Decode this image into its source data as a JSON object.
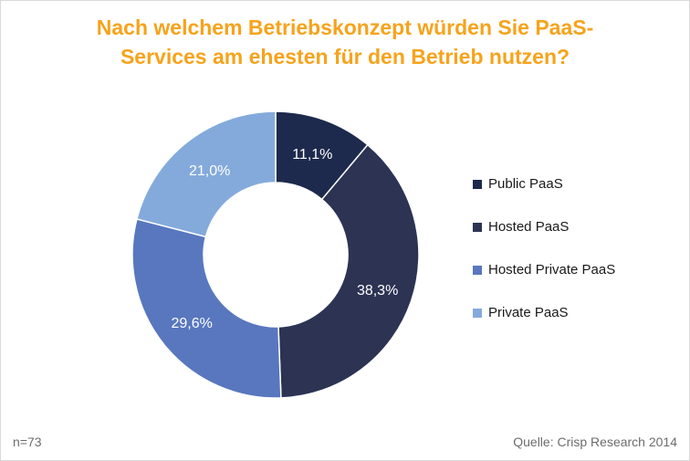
{
  "title_lines": [
    "Nach welchem Betriebskonzept würden Sie PaaS-",
    "Services am ehesten für den Betrieb nutzen?"
  ],
  "footer": {
    "sample": "n=73",
    "source": "Quelle: Crisp Research 2014"
  },
  "chart_data": {
    "type": "pie",
    "variant": "donut",
    "title": "Nach welchem Betriebskonzept würden Sie PaaS-Services am ehesten für den Betrieb nutzen?",
    "categories": [
      "Public PaaS",
      "Hosted PaaS",
      "Hosted Private PaaS",
      "Private PaaS"
    ],
    "values": [
      11.1,
      38.3,
      29.6,
      21.0
    ],
    "value_labels": [
      "11,1%",
      "38,3%",
      "29,6%",
      "21,0%"
    ],
    "colors": [
      "#1d2a4d",
      "#2c3353",
      "#5877bf",
      "#84aadc"
    ],
    "label_colors": [
      "#ffffff",
      "#ffffff",
      "#ffffff",
      "#ffffff"
    ],
    "legend_position": "right",
    "start": "top",
    "direction": "clockwise"
  }
}
